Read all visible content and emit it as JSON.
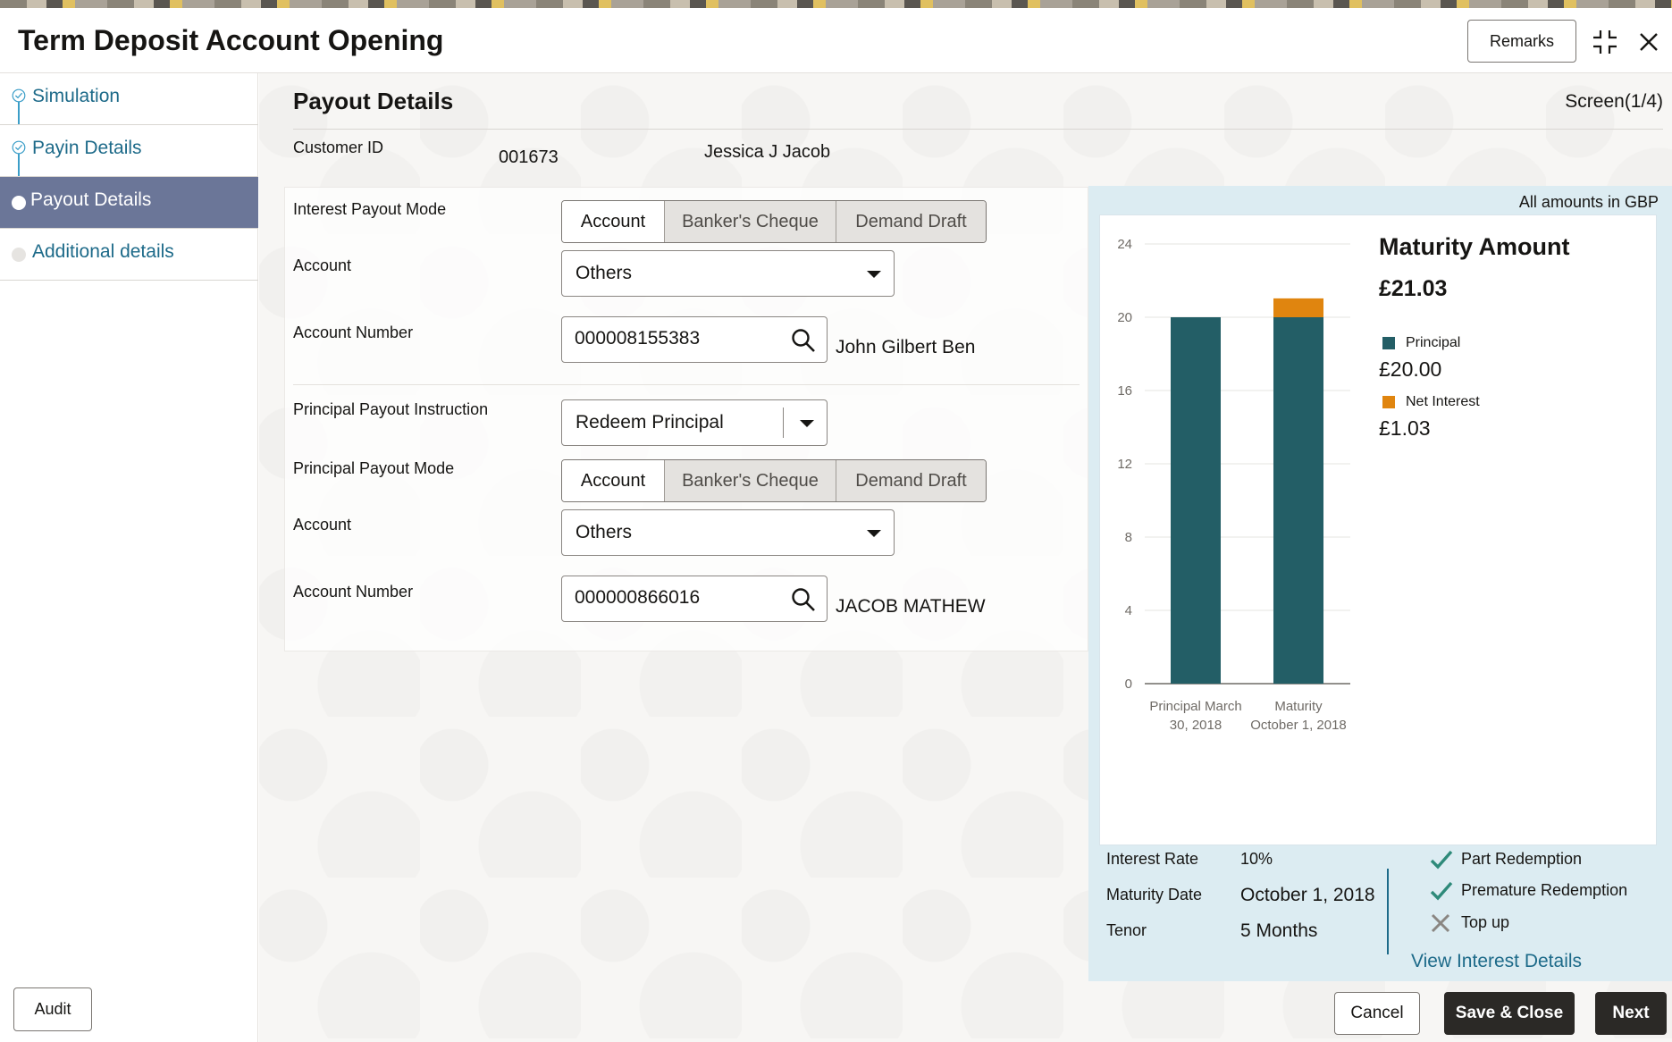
{
  "app": {
    "title": "Term Deposit Account Opening",
    "remarks_label": "Remarks"
  },
  "sidebar": {
    "items": [
      {
        "label": "Simulation",
        "state": "done"
      },
      {
        "label": "Payin Details",
        "state": "done"
      },
      {
        "label": "Payout Details",
        "state": "active"
      },
      {
        "label": "Additional details",
        "state": "pending"
      }
    ],
    "audit_label": "Audit"
  },
  "main": {
    "section_title": "Payout Details",
    "screen_indicator": "Screen(1/4)",
    "customer": {
      "label": "Customer ID",
      "id": "001673",
      "name": "Jessica J Jacob"
    },
    "interest": {
      "mode_label": "Interest Payout Mode",
      "modes": [
        "Account",
        "Banker's Cheque",
        "Demand Draft"
      ],
      "account_label": "Account",
      "account_value": "Others",
      "account_number_label": "Account Number",
      "account_number": "000008155383",
      "account_holder": "John Gilbert Ben"
    },
    "principal": {
      "instruction_label": "Principal Payout Instruction",
      "instruction_value": "Redeem Principal",
      "mode_label": "Principal Payout Mode",
      "modes": [
        "Account",
        "Banker's Cheque",
        "Demand Draft"
      ],
      "account_label": "Account",
      "account_value": "Others",
      "account_number_label": "Account Number",
      "account_number": "000000866016",
      "account_holder": "JACOB MATHEW"
    }
  },
  "summary": {
    "amounts_note": "All amounts in GBP",
    "maturity_title": "Maturity Amount",
    "maturity_amount": "£21.03",
    "legend": [
      {
        "name": "Principal",
        "value": "£20.00",
        "color": "#235e66"
      },
      {
        "name": "Net Interest",
        "value": "£1.03",
        "color": "#e0850f"
      }
    ],
    "interest_rate_label": "Interest Rate",
    "interest_rate": "10%",
    "maturity_date_label": "Maturity Date",
    "maturity_date": "October 1, 2018",
    "tenor_label": "Tenor",
    "tenor": "5 Months",
    "features": [
      {
        "label": "Part Redemption",
        "enabled": true
      },
      {
        "label": "Premature Redemption",
        "enabled": true
      },
      {
        "label": "Top up",
        "enabled": false
      }
    ],
    "view_link": "View Interest Details"
  },
  "chart_data": {
    "type": "bar",
    "stacked": true,
    "categories": [
      "Principal March 30, 2018",
      "Maturity October 1, 2018"
    ],
    "category_lines": [
      [
        "Principal March",
        "30, 2018"
      ],
      [
        "Maturity",
        "October 1, 2018"
      ]
    ],
    "series": [
      {
        "name": "Principal",
        "values": [
          20,
          20
        ],
        "color": "#235e66"
      },
      {
        "name": "Net Interest",
        "values": [
          0,
          1.03
        ],
        "color": "#e0850f"
      }
    ],
    "yticks": [
      0,
      4,
      8,
      12,
      16,
      20,
      24
    ],
    "ylim": [
      0,
      24
    ],
    "grid": true
  },
  "footer": {
    "cancel": "Cancel",
    "save_close": "Save & Close",
    "next": "Next"
  }
}
